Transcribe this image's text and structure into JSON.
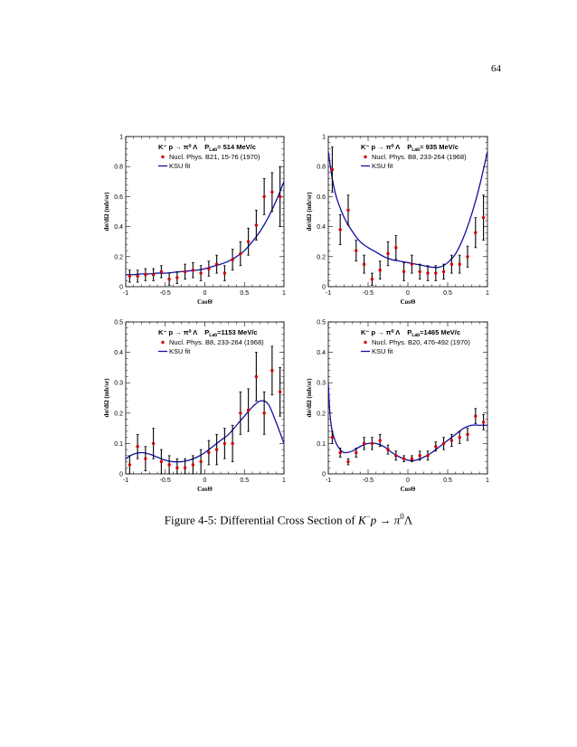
{
  "page_number": "64",
  "caption": {
    "prefix": "Figure 4-5: Differential Cross Section of ",
    "formula": "K",
    "formula_sup": "−",
    "formula_mid": "p → π",
    "formula_sup2": "0",
    "formula_end": "Λ"
  },
  "colors": {
    "data_marker": "#d40000",
    "error_bar": "#000000",
    "fit_line": "#1010a0"
  },
  "chart_data": [
    {
      "type": "scatter",
      "title_parts": {
        "reaction": "K⁻ p → π⁰ Λ",
        "plab_label": "P",
        "plab_sub": "Lab",
        "plab_value": "= 514 MeV/c"
      },
      "xlabel": "CosΘ",
      "ylabel": "dσ/dΩ (mb/sr)",
      "xlim": [
        -1,
        1
      ],
      "ylim": [
        0,
        1
      ],
      "xticks": [
        "-1",
        "-0.5",
        "0",
        "0.5",
        "1"
      ],
      "yticks": [
        "0",
        "0.2",
        "0.4",
        "0.6",
        "0.8",
        "1"
      ],
      "legend": {
        "data": "Nucl. Phys. B21, 15-76 (1970)",
        "fit": "KSU fit"
      },
      "series": [
        {
          "name": "Nucl. Phys. B21, 15-76 (1970)",
          "x": [
            -0.95,
            -0.85,
            -0.75,
            -0.65,
            -0.55,
            -0.45,
            -0.35,
            -0.25,
            -0.15,
            -0.05,
            0.05,
            0.15,
            0.25,
            0.35,
            0.45,
            0.55,
            0.65,
            0.75,
            0.85,
            0.95
          ],
          "y": [
            0.07,
            0.07,
            0.08,
            0.08,
            0.1,
            0.05,
            0.06,
            0.1,
            0.11,
            0.09,
            0.12,
            0.15,
            0.09,
            0.18,
            0.22,
            0.3,
            0.41,
            0.6,
            0.63,
            0.6
          ],
          "err": [
            0.04,
            0.04,
            0.04,
            0.04,
            0.04,
            0.04,
            0.04,
            0.05,
            0.05,
            0.05,
            0.05,
            0.06,
            0.05,
            0.07,
            0.08,
            0.09,
            0.1,
            0.12,
            0.13,
            0.2
          ]
        },
        {
          "name": "KSU fit",
          "x": [
            -1.0,
            -0.9,
            -0.8,
            -0.7,
            -0.6,
            -0.5,
            -0.4,
            -0.3,
            -0.2,
            -0.1,
            0.0,
            0.1,
            0.2,
            0.3,
            0.4,
            0.5,
            0.6,
            0.7,
            0.8,
            0.9,
            1.0
          ],
          "y": [
            0.08,
            0.08,
            0.085,
            0.085,
            0.09,
            0.09,
            0.095,
            0.1,
            0.105,
            0.11,
            0.12,
            0.135,
            0.15,
            0.17,
            0.2,
            0.24,
            0.3,
            0.37,
            0.46,
            0.57,
            0.7
          ]
        }
      ]
    },
    {
      "type": "scatter",
      "title_parts": {
        "reaction": "K⁻ p → π⁰ Λ",
        "plab_label": "P",
        "plab_sub": "Lab",
        "plab_value": "= 935 MeV/c"
      },
      "xlabel": "CosΘ",
      "ylabel": "dσ/dΩ (mb/sr)",
      "xlim": [
        -1,
        1
      ],
      "ylim": [
        0,
        1
      ],
      "xticks": [
        "-1",
        "-0.5",
        "0",
        "0.5",
        "1"
      ],
      "yticks": [
        "0",
        "0.2",
        "0.4",
        "0.6",
        "0.8",
        "1"
      ],
      "legend": {
        "data": "Nucl. Phys. B8, 233-264 (1968)",
        "fit": "KSU fit"
      },
      "series": [
        {
          "name": "Nucl. Phys. B8, 233-264 (1968)",
          "x": [
            -0.95,
            -0.85,
            -0.75,
            -0.65,
            -0.55,
            -0.45,
            -0.35,
            -0.25,
            -0.15,
            -0.05,
            0.05,
            0.15,
            0.25,
            0.35,
            0.45,
            0.55,
            0.65,
            0.75,
            0.85,
            0.95
          ],
          "y": [
            0.78,
            0.38,
            0.51,
            0.24,
            0.15,
            0.05,
            0.11,
            0.22,
            0.26,
            0.1,
            0.15,
            0.1,
            0.09,
            0.09,
            0.1,
            0.15,
            0.15,
            0.2,
            0.36,
            0.46
          ],
          "err": [
            0.15,
            0.1,
            0.1,
            0.07,
            0.06,
            0.04,
            0.06,
            0.08,
            0.08,
            0.06,
            0.06,
            0.05,
            0.05,
            0.05,
            0.05,
            0.06,
            0.06,
            0.07,
            0.1,
            0.15
          ]
        },
        {
          "name": "KSU fit",
          "x": [
            -1.0,
            -0.95,
            -0.9,
            -0.8,
            -0.7,
            -0.6,
            -0.5,
            -0.4,
            -0.3,
            -0.2,
            -0.1,
            0.0,
            0.1,
            0.2,
            0.3,
            0.4,
            0.5,
            0.6,
            0.7,
            0.8,
            0.9,
            1.0
          ],
          "y": [
            0.9,
            0.72,
            0.6,
            0.46,
            0.37,
            0.3,
            0.26,
            0.23,
            0.2,
            0.18,
            0.17,
            0.16,
            0.15,
            0.14,
            0.13,
            0.13,
            0.16,
            0.22,
            0.33,
            0.48,
            0.67,
            0.9
          ]
        }
      ]
    },
    {
      "type": "scatter",
      "title_parts": {
        "reaction": "K⁻ p → π⁰ Λ",
        "plab_label": "P",
        "plab_sub": "Lab",
        "plab_value": "=1153 MeV/c"
      },
      "xlabel": "CosΘ",
      "ylabel": "dσ/dΩ (mb/sr)",
      "xlim": [
        -1,
        1
      ],
      "ylim": [
        0,
        0.5
      ],
      "xticks": [
        "-1",
        "-0.5",
        "0",
        "0.5",
        "1"
      ],
      "yticks": [
        "0",
        "0.1",
        "0.2",
        "0.3",
        "0.4",
        "0.5"
      ],
      "legend": {
        "data": "Nucl. Phys. B8, 233-264 (1968)",
        "fit": "KSU fit"
      },
      "series": [
        {
          "name": "Nucl. Phys. B8, 233-264 (1968)",
          "x": [
            -0.95,
            -0.85,
            -0.75,
            -0.65,
            -0.55,
            -0.45,
            -0.35,
            -0.25,
            -0.15,
            -0.05,
            0.05,
            0.15,
            0.25,
            0.35,
            0.45,
            0.55,
            0.65,
            0.75,
            0.85,
            0.95
          ],
          "y": [
            0.03,
            0.09,
            0.05,
            0.1,
            0.04,
            0.03,
            0.02,
            0.02,
            0.03,
            0.04,
            0.07,
            0.08,
            0.1,
            0.1,
            0.2,
            0.21,
            0.32,
            0.2,
            0.34,
            0.27
          ],
          "err": [
            0.03,
            0.04,
            0.04,
            0.05,
            0.04,
            0.03,
            0.03,
            0.03,
            0.03,
            0.04,
            0.04,
            0.05,
            0.05,
            0.06,
            0.07,
            0.07,
            0.08,
            0.07,
            0.08,
            0.08
          ]
        },
        {
          "name": "KSU fit",
          "x": [
            -1.0,
            -0.9,
            -0.8,
            -0.7,
            -0.6,
            -0.5,
            -0.4,
            -0.3,
            -0.2,
            -0.1,
            0.0,
            0.1,
            0.2,
            0.3,
            0.4,
            0.5,
            0.6,
            0.7,
            0.8,
            0.9,
            1.0
          ],
          "y": [
            0.05,
            0.065,
            0.07,
            0.065,
            0.055,
            0.045,
            0.04,
            0.04,
            0.045,
            0.055,
            0.07,
            0.09,
            0.11,
            0.13,
            0.16,
            0.19,
            0.22,
            0.24,
            0.23,
            0.17,
            0.1
          ]
        }
      ]
    },
    {
      "type": "scatter",
      "title_parts": {
        "reaction": "K⁻ p → π⁰ Λ",
        "plab_label": "P",
        "plab_sub": "Lab",
        "plab_value": "=1465 MeV/c"
      },
      "xlabel": "CosΘ",
      "ylabel": "dσ/dΩ (mb/sr)",
      "xlim": [
        -1,
        1
      ],
      "ylim": [
        0,
        0.5
      ],
      "xticks": [
        "-1",
        "-0.5",
        "0",
        "0.5",
        "1"
      ],
      "yticks": [
        "0",
        "0.1",
        "0.2",
        "0.3",
        "0.4",
        "0.5"
      ],
      "legend": {
        "data": "Nucl. Phys. B20, 476-492 (1970)",
        "fit": "KSU fit"
      },
      "series": [
        {
          "name": "Nucl. Phys. B20, 476-492 (1970)",
          "x": [
            -0.95,
            -0.85,
            -0.75,
            -0.65,
            -0.55,
            -0.45,
            -0.35,
            -0.25,
            -0.15,
            -0.05,
            0.05,
            0.15,
            0.25,
            0.35,
            0.45,
            0.55,
            0.65,
            0.75,
            0.85,
            0.95
          ],
          "y": [
            0.12,
            0.07,
            0.04,
            0.07,
            0.1,
            0.1,
            0.11,
            0.08,
            0.06,
            0.05,
            0.05,
            0.06,
            0.06,
            0.09,
            0.1,
            0.11,
            0.12,
            0.13,
            0.19,
            0.17
          ],
          "err": [
            0.02,
            0.015,
            0.01,
            0.015,
            0.02,
            0.02,
            0.02,
            0.015,
            0.015,
            0.01,
            0.01,
            0.015,
            0.015,
            0.015,
            0.02,
            0.02,
            0.02,
            0.02,
            0.025,
            0.025
          ]
        },
        {
          "name": "KSU fit",
          "x": [
            -1.0,
            -0.98,
            -0.95,
            -0.9,
            -0.85,
            -0.8,
            -0.7,
            -0.6,
            -0.5,
            -0.4,
            -0.3,
            -0.2,
            -0.1,
            0.0,
            0.1,
            0.2,
            0.3,
            0.4,
            0.5,
            0.6,
            0.7,
            0.8,
            0.9,
            1.0
          ],
          "y": [
            0.3,
            0.2,
            0.14,
            0.1,
            0.08,
            0.07,
            0.075,
            0.09,
            0.1,
            0.1,
            0.09,
            0.07,
            0.055,
            0.045,
            0.045,
            0.055,
            0.07,
            0.09,
            0.11,
            0.13,
            0.15,
            0.16,
            0.16,
            0.16
          ]
        }
      ]
    }
  ]
}
